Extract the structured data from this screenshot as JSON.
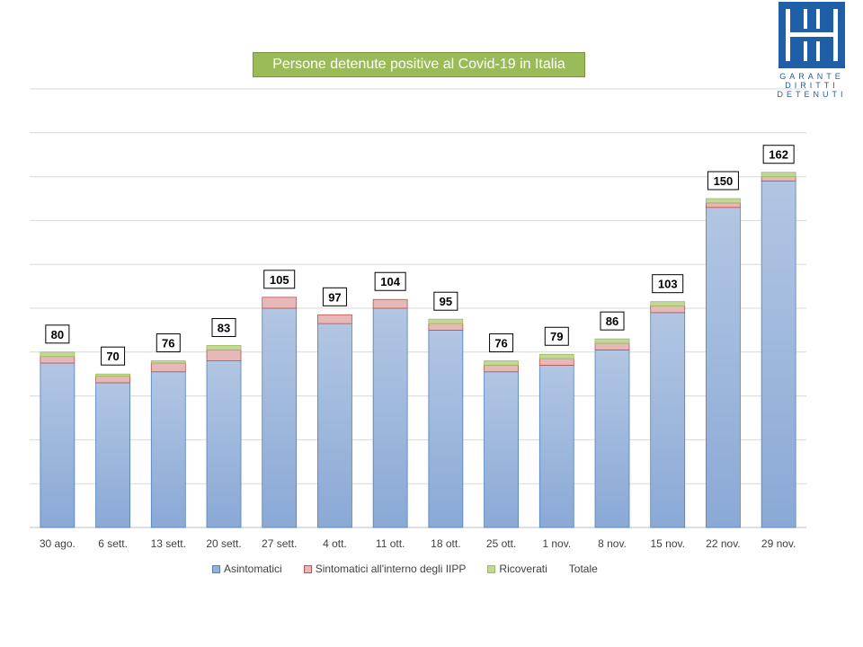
{
  "logo": {
    "line1": "GARANTE",
    "line2": "DIRITTI",
    "line3": "DETENUTI"
  },
  "chart_data": {
    "type": "bar",
    "stacked": true,
    "title": "Persone detenute positive al Covid-19 in Italia",
    "categories": [
      "30 ago.",
      "6 sett.",
      "13 sett.",
      "20 sett.",
      "27 sett.",
      "4 ott.",
      "11 ott.",
      "18 ott.",
      "25 ott.",
      "1 nov.",
      "8 nov.",
      "15 nov.",
      "22 nov.",
      "29 nov."
    ],
    "series": [
      {
        "name": "Asintomatici",
        "color": "#95b3d7",
        "values": [
          75,
          66,
          71,
          76,
          100,
          93,
          100,
          90,
          71,
          74,
          81,
          98,
          146,
          158
        ]
      },
      {
        "name": "Sintomatici all'interno degli IIPP",
        "color": "#e6b9b8",
        "values": [
          3,
          3,
          4,
          5,
          5,
          4,
          4,
          3,
          3,
          3,
          3,
          3,
          2,
          2
        ]
      },
      {
        "name": "Ricoverati",
        "color": "#c3d69b",
        "values": [
          2,
          1,
          1,
          2,
          0,
          0,
          0,
          2,
          2,
          2,
          2,
          2,
          2,
          2
        ]
      }
    ],
    "totals_label": "Totale",
    "totals": [
      80,
      70,
      76,
      83,
      105,
      97,
      104,
      95,
      76,
      79,
      86,
      103,
      150,
      162
    ],
    "ylim": [
      0,
      200
    ],
    "grid": true,
    "legend": "bottom"
  }
}
